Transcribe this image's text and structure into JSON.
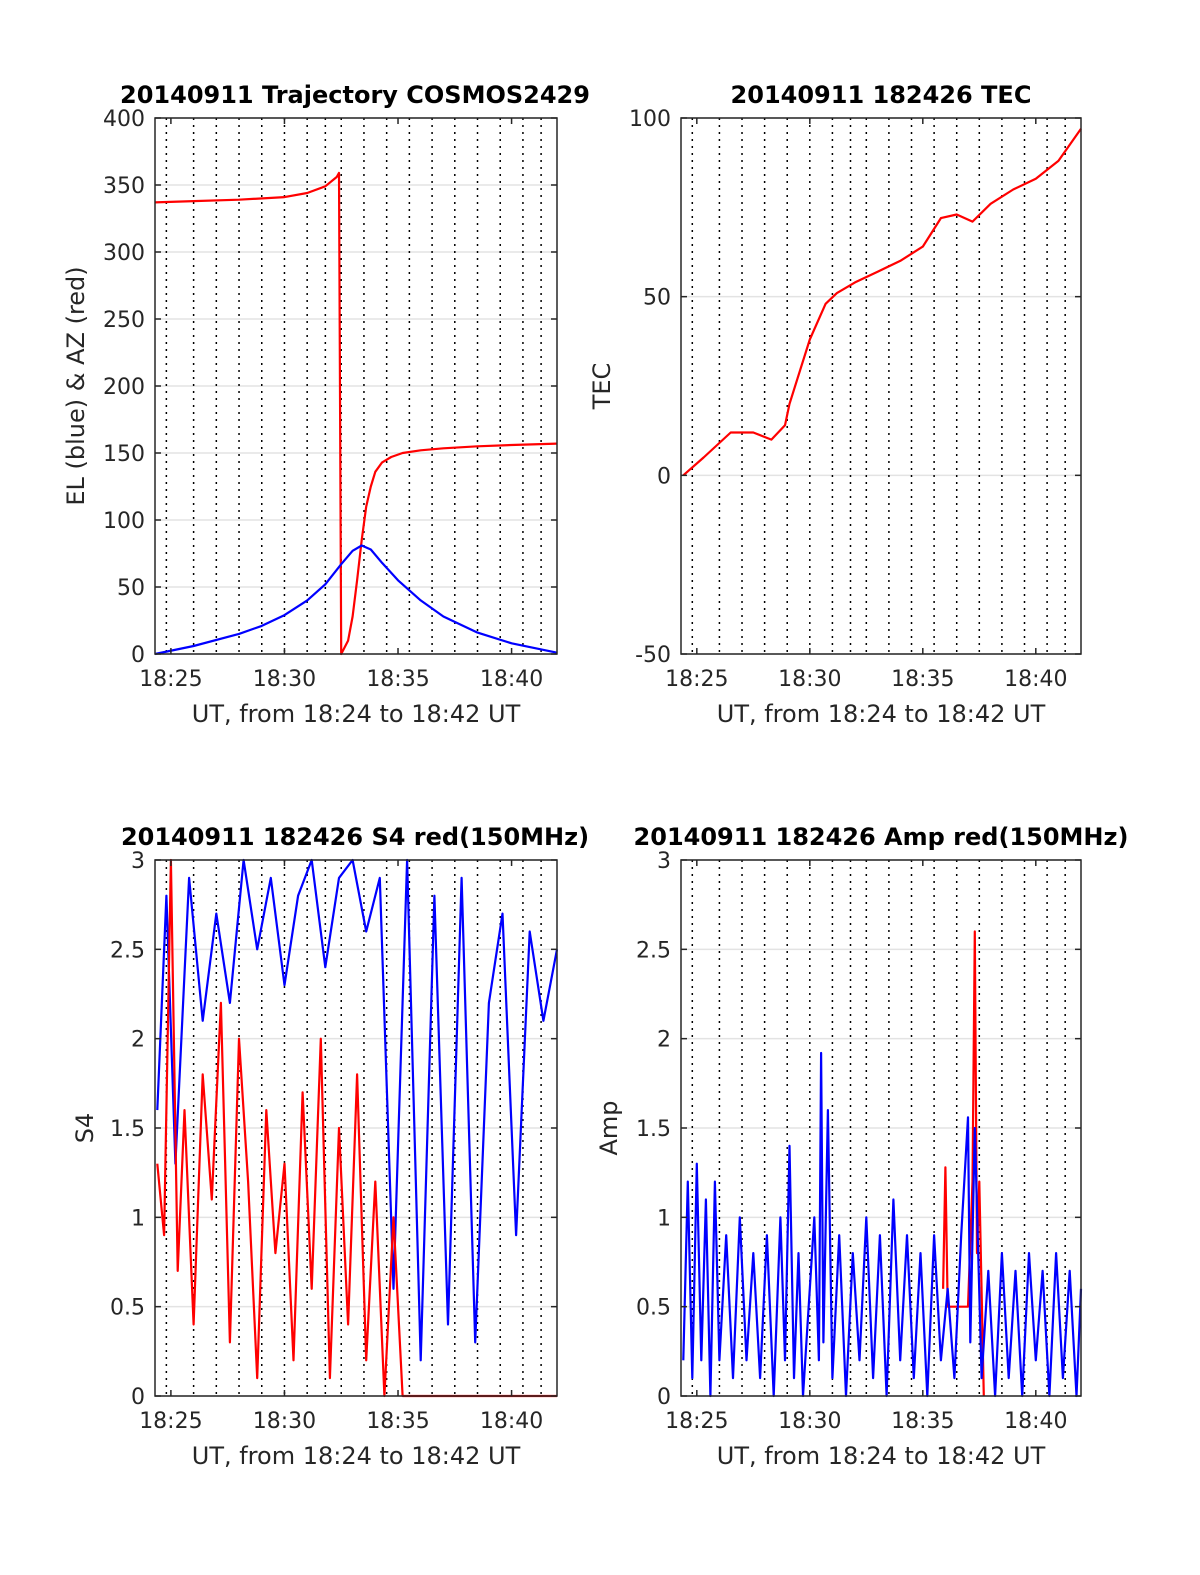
{
  "chart_data": [
    {
      "type": "line",
      "title": "20140911 Trajectory COSMOS2429",
      "xlabel": "UT, from 18:24 to 18:42 UT",
      "ylabel": "EL (blue) & AZ (red)",
      "x_unit": "minutes after 18:00 UT",
      "xlim": [
        24.3,
        42.0
      ],
      "ylim": [
        0,
        400
      ],
      "xtick_labels": [
        "18:25",
        "18:30",
        "18:35",
        "18:40"
      ],
      "ytick_labels": [
        "0",
        "50",
        "100",
        "150",
        "200",
        "250",
        "300",
        "350",
        "400"
      ],
      "grid": true,
      "series": [
        {
          "color": "#ff0000",
          "x": [
            24.3,
            26,
            28,
            30,
            31,
            31.8,
            32.3,
            32.4,
            32.5,
            32.8,
            33.0,
            33.2,
            33.4,
            33.6,
            33.8,
            34.0,
            34.3,
            34.7,
            35.2,
            36,
            37,
            38.5,
            40,
            42
          ],
          "y": [
            337,
            338,
            339,
            341,
            344,
            349,
            356,
            359,
            0,
            10,
            28,
            55,
            85,
            110,
            125,
            136,
            143,
            147,
            150,
            152,
            153.5,
            155,
            156,
            157
          ]
        },
        {
          "color": "#0000ff",
          "x": [
            24.3,
            26,
            28,
            29,
            30,
            31,
            31.8,
            32.5,
            33.0,
            33.4,
            33.8,
            34.3,
            35,
            36,
            37,
            38.5,
            40,
            42
          ],
          "y": [
            0,
            6,
            15,
            21,
            29,
            40,
            52,
            67,
            77,
            81,
            78,
            68,
            55,
            40,
            28,
            16,
            8,
            1
          ]
        }
      ]
    },
    {
      "type": "line",
      "title": "20140911 182426 TEC",
      "xlabel": "UT, from 18:24 to 18:42 UT",
      "ylabel": "TEC",
      "x_unit": "minutes after 18:00 UT",
      "xlim": [
        24.3,
        42.0
      ],
      "ylim": [
        -50,
        100
      ],
      "xtick_labels": [
        "18:25",
        "18:30",
        "18:35",
        "18:40"
      ],
      "ytick_labels": [
        "-50",
        "0",
        "50",
        "100"
      ],
      "grid": true,
      "series": [
        {
          "color": "#ff0000",
          "x": [
            24.4,
            25.3,
            26.5,
            27.5,
            28.3,
            28.9,
            29.1,
            29.5,
            30.0,
            30.7,
            31.2,
            32.0,
            33.0,
            34.0,
            35.0,
            35.8,
            36.5,
            37.2,
            38.0,
            39.0,
            40.0,
            41.0,
            42.0
          ],
          "y": [
            0,
            5,
            12,
            12,
            10,
            14,
            20,
            28,
            38,
            48,
            51,
            54,
            57,
            60,
            64,
            72,
            73,
            71,
            76,
            80,
            83,
            88,
            97
          ]
        }
      ]
    },
    {
      "type": "line",
      "title": "20140911 182426 S4 red(150MHz)",
      "xlabel": "UT, from 18:24 to 18:42 UT",
      "ylabel": "S4",
      "x_unit": "minutes after 18:00 UT",
      "xlim": [
        24.3,
        42.0
      ],
      "ylim": [
        0,
        3
      ],
      "xtick_labels": [
        "18:25",
        "18:30",
        "18:35",
        "18:40"
      ],
      "ytick_labels": [
        "0",
        "0.5",
        "1",
        "1.5",
        "2",
        "2.5",
        "3"
      ],
      "grid": true,
      "series": [
        {
          "color": "#0000ff",
          "x": [
            24.4,
            24.8,
            25.2,
            25.8,
            26.4,
            27.0,
            27.6,
            28.2,
            28.8,
            29.4,
            30.0,
            30.6,
            31.2,
            31.8,
            32.4,
            33.0,
            33.6,
            34.2,
            34.8,
            35.4,
            36.0,
            36.6,
            37.2,
            37.8,
            38.4,
            39.0,
            39.6,
            40.2,
            40.8,
            41.4,
            42.0
          ],
          "y": [
            1.6,
            2.8,
            1.3,
            2.9,
            2.1,
            2.7,
            2.2,
            3.0,
            2.5,
            2.9,
            2.3,
            2.8,
            3.0,
            2.4,
            2.9,
            3.0,
            2.6,
            2.9,
            0.6,
            3.0,
            0.2,
            2.8,
            0.4,
            2.9,
            0.3,
            2.2,
            2.7,
            0.9,
            2.6,
            2.1,
            2.5
          ]
        },
        {
          "color": "#ff0000",
          "x": [
            24.4,
            24.7,
            25.0,
            25.3,
            25.6,
            26.0,
            26.4,
            26.8,
            27.2,
            27.6,
            28.0,
            28.4,
            28.8,
            29.2,
            29.6,
            30.0,
            30.4,
            30.8,
            31.2,
            31.6,
            32.0,
            32.4,
            32.8,
            33.2,
            33.6,
            34.0,
            34.4,
            34.8,
            35.2,
            36.0,
            37.0,
            38.0,
            39.0,
            40.0,
            41.0,
            42.0
          ],
          "y": [
            1.3,
            0.9,
            3.0,
            0.7,
            1.6,
            0.4,
            1.8,
            1.1,
            2.2,
            0.3,
            2.0,
            1.2,
            0.1,
            1.6,
            0.8,
            1.3,
            0.2,
            1.7,
            0.6,
            2.0,
            0.1,
            1.5,
            0.4,
            1.8,
            0.2,
            1.2,
            0.0,
            1.0,
            0.0,
            0.0,
            0.0,
            0.0,
            0.0,
            0.0,
            0.0,
            0.0
          ]
        }
      ]
    },
    {
      "type": "line",
      "title": "20140911 182426 Amp red(150MHz)",
      "xlabel": "UT, from 18:24 to 18:42 UT",
      "ylabel": "Amp",
      "x_unit": "minutes after 18:00 UT",
      "xlim": [
        24.3,
        42.0
      ],
      "ylim": [
        0,
        3
      ],
      "xtick_labels": [
        "18:25",
        "18:30",
        "18:35",
        "18:40"
      ],
      "ytick_labels": [
        "0",
        "0.5",
        "1",
        "1.5",
        "2",
        "2.5",
        "3"
      ],
      "grid": true,
      "series": [
        {
          "color": "#ff0000",
          "x": [
            35.9,
            36.0,
            36.1,
            37.0,
            37.2,
            37.3,
            37.4,
            37.5,
            37.7
          ],
          "y": [
            0.6,
            1.28,
            0.5,
            0.5,
            1.2,
            2.6,
            0.8,
            1.2,
            0.0
          ]
        },
        {
          "color": "#0000ff",
          "x": [
            24.4,
            24.6,
            24.8,
            25.0,
            25.2,
            25.4,
            25.6,
            25.8,
            26.0,
            26.3,
            26.6,
            26.9,
            27.2,
            27.5,
            27.8,
            28.1,
            28.4,
            28.7,
            28.9,
            29.1,
            29.3,
            29.5,
            29.7,
            30.0,
            30.2,
            30.4,
            30.5,
            30.6,
            30.8,
            31.0,
            31.3,
            31.6,
            31.9,
            32.2,
            32.5,
            32.8,
            33.1,
            33.4,
            33.7,
            34.0,
            34.3,
            34.6,
            34.9,
            35.2,
            35.5,
            35.8,
            36.1,
            36.4,
            36.7,
            37.0,
            37.1,
            37.3,
            37.6,
            37.9,
            38.2,
            38.5,
            38.8,
            39.1,
            39.4,
            39.7,
            40.0,
            40.3,
            40.6,
            40.9,
            41.2,
            41.5,
            41.8,
            42.0
          ],
          "y": [
            0.2,
            1.2,
            0.1,
            1.3,
            0.2,
            1.1,
            0.0,
            1.2,
            0.2,
            0.9,
            0.1,
            1.0,
            0.2,
            0.8,
            0.1,
            0.9,
            0.0,
            1.0,
            0.2,
            1.4,
            0.1,
            0.8,
            0.0,
            0.6,
            1.0,
            0.2,
            1.92,
            0.3,
            1.6,
            0.1,
            0.9,
            0.0,
            0.8,
            0.2,
            1.0,
            0.1,
            0.9,
            0.0,
            1.1,
            0.2,
            0.9,
            0.1,
            0.8,
            0.0,
            0.9,
            0.2,
            0.6,
            0.1,
            0.9,
            1.56,
            0.3,
            1.5,
            0.1,
            0.7,
            0.0,
            0.8,
            0.1,
            0.7,
            0.0,
            0.8,
            0.2,
            0.7,
            0.0,
            0.8,
            0.1,
            0.7,
            0.0,
            0.6
          ]
        }
      ]
    }
  ]
}
